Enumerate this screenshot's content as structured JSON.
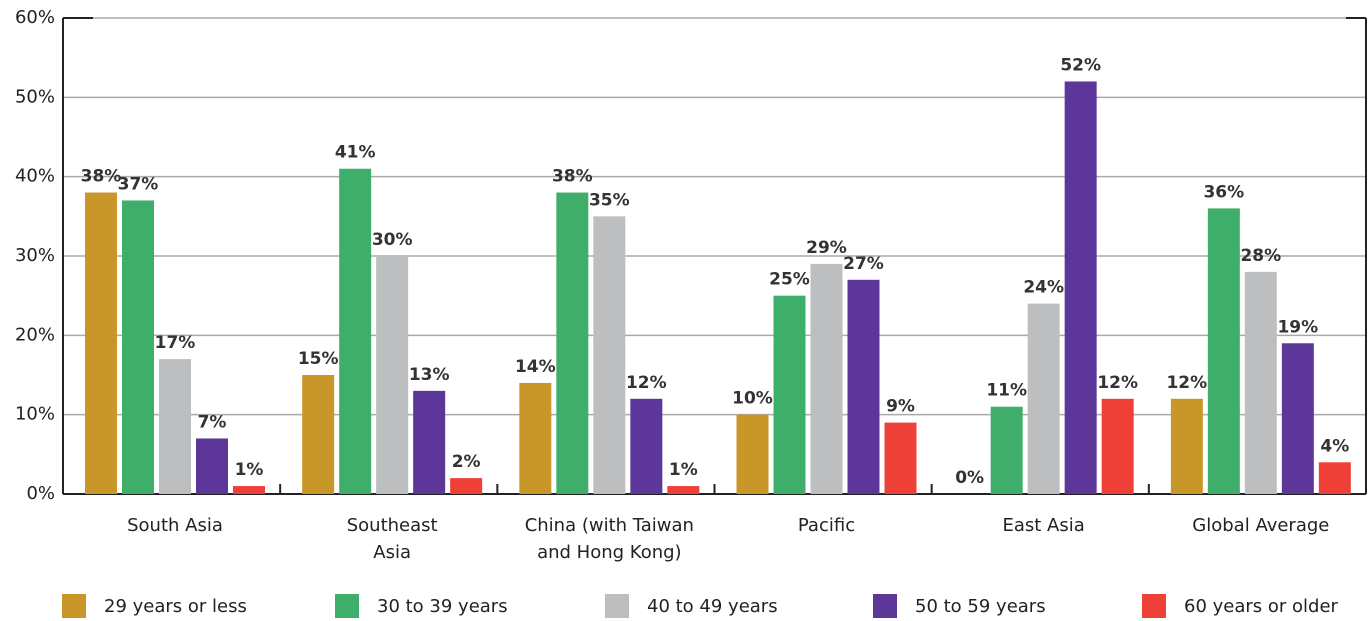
{
  "chart_data": {
    "type": "bar",
    "categories": [
      "South Asia",
      "Southeast\nAsia",
      "China (with Taiwan\nand Hong Kong)",
      "Pacific",
      "East Asia",
      "Global Average"
    ],
    "series": [
      {
        "name": "29 years or less",
        "color": "#c9962a",
        "values": [
          38,
          15,
          14,
          10,
          0,
          12
        ],
        "value_labels": [
          "38%",
          "15%",
          "14%",
          "10%",
          "0%",
          "12%"
        ]
      },
      {
        "name": "30 to 39 years",
        "color": "#3fae6a",
        "values": [
          37,
          41,
          38,
          25,
          11,
          36
        ],
        "value_labels": [
          "37%",
          "41%",
          "38%",
          "25%",
          "11%",
          "36%"
        ]
      },
      {
        "name": "40 to 49 years",
        "color": "#bcbec0",
        "values": [
          17,
          30,
          35,
          29,
          24,
          28
        ],
        "value_labels": [
          "17%",
          "30%",
          "35%",
          "29%",
          "24%",
          "28%"
        ]
      },
      {
        "name": "50 to 59 years",
        "color": "#5c3799",
        "values": [
          7,
          13,
          12,
          27,
          52,
          19
        ],
        "value_labels": [
          "7%",
          "13%",
          "12%",
          "27%",
          "52%",
          "19%"
        ]
      },
      {
        "name": "60 years or older",
        "color": "#ee4037",
        "values": [
          1,
          2,
          1,
          9,
          12,
          4
        ],
        "value_labels": [
          "1%",
          "2%",
          "1%",
          "9%",
          "12%",
          "4%"
        ]
      }
    ],
    "ylim": [
      0,
      60
    ],
    "yticks": [
      {
        "value": 0,
        "label": "0%"
      },
      {
        "value": 10,
        "label": "10%"
      },
      {
        "value": 20,
        "label": "20%"
      },
      {
        "value": 30,
        "label": "30%"
      },
      {
        "value": 40,
        "label": "40%"
      },
      {
        "value": 50,
        "label": "50%"
      },
      {
        "value": 60,
        "label": "60%"
      }
    ],
    "grid": true
  }
}
